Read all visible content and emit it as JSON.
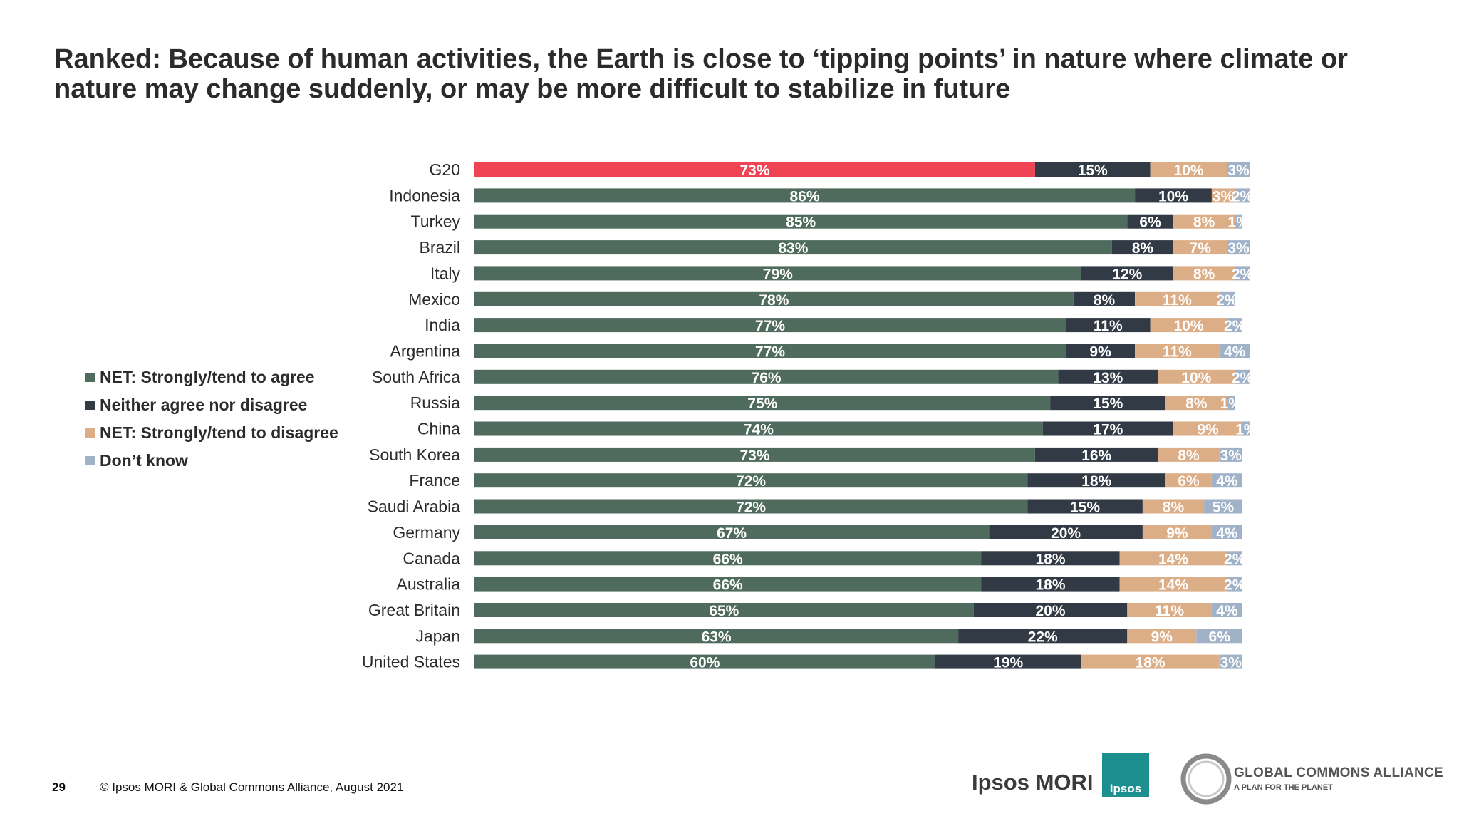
{
  "title": "Ranked: Because of human activities, the Earth is close to ‘tipping points’ in nature where climate or nature may change suddenly, or may be more difficult to stabilize in future",
  "footer": {
    "page_number": "29",
    "copyright": "© Ipsos MORI & Global Commons Alliance, August 2021"
  },
  "logos": {
    "ipsos_mori": "Ipsos MORI",
    "ipsos_box": "Ipsos",
    "gca_name": "GLOBAL COMMONS ALLIANCE",
    "gca_tagline": "A PLAN FOR THE PLANET"
  },
  "colors": {
    "agree": "#4f6b5e",
    "agree_g20": "#ee4454",
    "neither": "#313a45",
    "disagree": "#dcae88",
    "dont_know": "#9fb2c8"
  },
  "chart_data": {
    "type": "bar",
    "orientation": "horizontal-stacked",
    "title": "",
    "xlabel": "",
    "ylabel": "",
    "xlim": [
      0,
      100
    ],
    "legend_position": "left",
    "categories": [
      "G20",
      "Indonesia",
      "Turkey",
      "Brazil",
      "Italy",
      "Mexico",
      "India",
      "Argentina",
      "South Africa",
      "Russia",
      "China",
      "South Korea",
      "France",
      "Saudi Arabia",
      "Germany",
      "Canada",
      "Australia",
      "Great Britain",
      "Japan",
      "United States"
    ],
    "series": [
      {
        "name": "NET: Strongly/tend to agree",
        "values": [
          73,
          86,
          85,
          83,
          79,
          78,
          77,
          77,
          76,
          75,
          74,
          73,
          72,
          72,
          67,
          66,
          66,
          65,
          63,
          60
        ]
      },
      {
        "name": "Neither agree nor disagree",
        "values": [
          15,
          10,
          6,
          8,
          12,
          8,
          11,
          9,
          13,
          15,
          17,
          16,
          18,
          15,
          20,
          18,
          18,
          20,
          22,
          19
        ]
      },
      {
        "name": "NET: Strongly/tend to disagree",
        "values": [
          10,
          3,
          8,
          7,
          8,
          11,
          10,
          11,
          10,
          8,
          9,
          8,
          6,
          8,
          9,
          14,
          14,
          11,
          9,
          18
        ]
      },
      {
        "name": "Don’t know",
        "values": [
          3,
          2,
          1,
          3,
          2,
          2,
          2,
          4,
          2,
          1,
          1,
          3,
          4,
          5,
          4,
          2,
          2,
          4,
          6,
          3
        ]
      }
    ]
  }
}
